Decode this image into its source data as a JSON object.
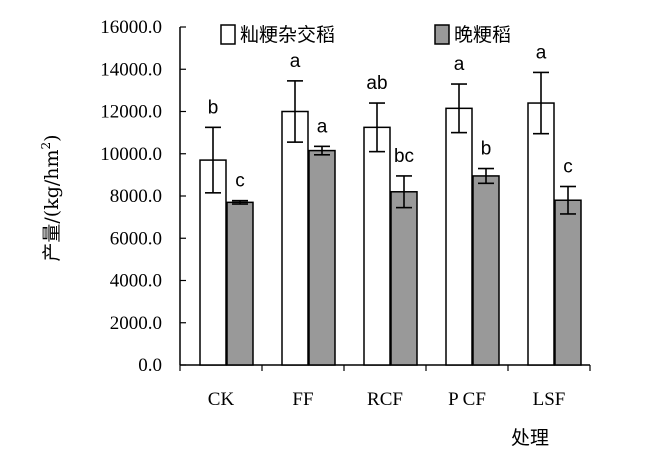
{
  "chart_data": {
    "type": "bar",
    "xlabel": "处理",
    "ylabel_prefix": "产量/(kg/hm",
    "ylabel_sup": "2",
    "ylabel_suffix": ")",
    "ylim": [
      0,
      16000
    ],
    "yticks": [
      0,
      2000,
      4000,
      6000,
      8000,
      10000,
      12000,
      14000,
      16000
    ],
    "ytick_labels": [
      "0.0",
      "2000.0",
      "4000.0",
      "6000.0",
      "8000.0",
      "10000.0",
      "12000.0",
      "14000.0",
      "16000.0"
    ],
    "categories": [
      "CK",
      "FF",
      "RCF",
      "P CF",
      "LSF"
    ],
    "legend_position": "top",
    "grid": false,
    "series": [
      {
        "name": "籼粳杂交稻",
        "color": "#ffffff",
        "values": [
          9700,
          12000,
          11250,
          12150,
          12400
        ],
        "errors": [
          1550,
          1450,
          1150,
          1150,
          1450
        ],
        "labels": [
          "b",
          "a",
          "ab",
          "a",
          "a"
        ]
      },
      {
        "name": "晚粳稻",
        "color": "#999999",
        "values": [
          7700,
          10150,
          8200,
          8950,
          7800
        ],
        "errors": [
          80,
          200,
          750,
          350,
          650
        ],
        "labels": [
          "c",
          "a",
          "bc",
          "b",
          "c"
        ]
      }
    ]
  }
}
